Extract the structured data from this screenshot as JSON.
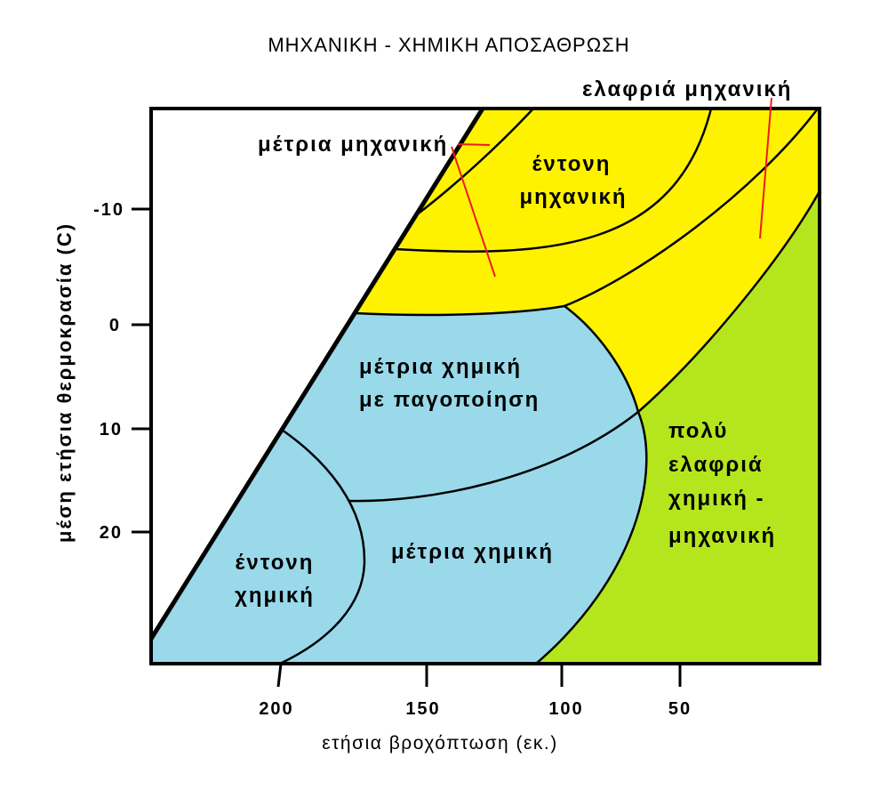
{
  "title": "ΜΗΧΑΝΙΚΗ - ΧΗΜΙΚΗ ΑΠΟΣΑΘΡΩΣΗ",
  "y_axis": {
    "label": "μέση ετήσια θερμοκρασία (C)",
    "ticks": [
      "-10",
      "0",
      "10",
      "20"
    ]
  },
  "x_axis": {
    "label": "ετήσια βροχόπτωση (εκ.)",
    "ticks": [
      "200",
      "150",
      "100",
      "50"
    ]
  },
  "regions": {
    "moderate_mechanical": "μέτρια μηχανική",
    "strong_mechanical": [
      "έντονη",
      "μηχανική"
    ],
    "slight_mechanical": "ελαφριά μηχανική",
    "moderate_chemical_with_frost": [
      "μέτρια χημική",
      "με παγοποίηση"
    ],
    "strong_chemical": [
      "έντονη",
      "χημική"
    ],
    "moderate_chemical": "μέτρια χημική",
    "very_slight_chemical_mechanical": [
      "πολύ",
      "ελαφριά",
      "χημική -",
      "μηχανική"
    ]
  },
  "colors": {
    "mechanical_zone": "#FFF200",
    "chemical_zone": "#99D9EA",
    "very_slight_zone": "#B5E61D",
    "pointer_lines": "#ED1C24",
    "boundaries": "#000000"
  }
}
